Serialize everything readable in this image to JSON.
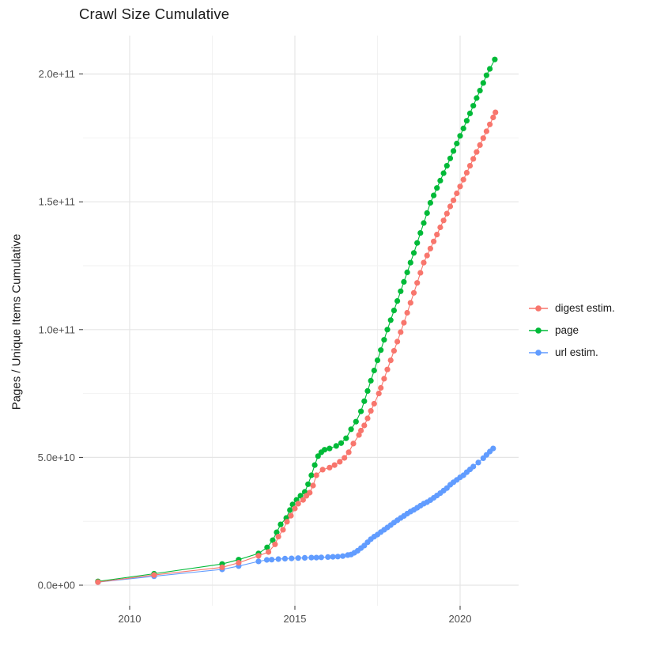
{
  "page": {
    "background": "#ffffff"
  },
  "chart_data": {
    "type": "line",
    "title": "Crawl Size Cumulative",
    "xlabel": "",
    "ylabel": "Pages / Unique Items Cumulative",
    "legend_position": "right",
    "grid": true,
    "grid_major_color": "#e5e5e5",
    "grid_minor_color": "#f2f2f2",
    "tick_mark_color": "#333333",
    "tick_label_color": "#4d4d4d",
    "value_unit": "items (point values stored in billions, i.e. 1e9)",
    "x_domain": [
      2008.6,
      2021.8
    ],
    "y_domain_billions": [
      -8,
      215
    ],
    "x_ticks": [
      {
        "label": "2010",
        "year": 2010
      },
      {
        "label": "2015",
        "year": 2015
      },
      {
        "label": "2020",
        "year": 2020
      }
    ],
    "x_minor_years": [
      2012.5,
      2017.5
    ],
    "y_ticks": [
      {
        "label": "0.0e+00",
        "billions": 0
      },
      {
        "label": "5.0e+10",
        "billions": 50
      },
      {
        "label": "1.0e+11",
        "billions": 100
      },
      {
        "label": "1.5e+11",
        "billions": 150
      },
      {
        "label": "2.0e+11",
        "billions": 200
      }
    ],
    "y_minor_billions": [
      25,
      75,
      125,
      175
    ],
    "series": [
      {
        "name": "digest estim.",
        "color": "#F8766D",
        "points_year_billions": [
          [
            2009.04,
            1.2
          ],
          [
            2010.74,
            4
          ],
          [
            2012.8,
            7
          ],
          [
            2013.3,
            8.8
          ],
          [
            2013.9,
            11.5
          ],
          [
            2014.2,
            13
          ],
          [
            2014.4,
            16
          ],
          [
            2014.5,
            19
          ],
          [
            2014.64,
            21.7
          ],
          [
            2014.76,
            24.8
          ],
          [
            2014.88,
            27.2
          ],
          [
            2015.0,
            30
          ],
          [
            2015.1,
            31.9
          ],
          [
            2015.25,
            33.4
          ],
          [
            2015.35,
            35
          ],
          [
            2015.45,
            36.2
          ],
          [
            2015.55,
            39
          ],
          [
            2015.65,
            43
          ],
          [
            2015.84,
            45.2
          ],
          [
            2016.05,
            46
          ],
          [
            2016.2,
            47
          ],
          [
            2016.36,
            48.3
          ],
          [
            2016.5,
            49.8
          ],
          [
            2016.63,
            52
          ],
          [
            2016.77,
            55.4
          ],
          [
            2016.94,
            58.8
          ],
          [
            2017.0,
            60.5
          ],
          [
            2017.1,
            62.5
          ],
          [
            2017.2,
            65.3
          ],
          [
            2017.3,
            68.2
          ],
          [
            2017.4,
            71
          ],
          [
            2017.54,
            75
          ],
          [
            2017.6,
            77.2
          ],
          [
            2017.7,
            80.8
          ],
          [
            2017.8,
            84.4
          ],
          [
            2017.9,
            88
          ],
          [
            2018.0,
            91.7
          ],
          [
            2018.1,
            95.3
          ],
          [
            2018.2,
            99
          ],
          [
            2018.3,
            102.7
          ],
          [
            2018.4,
            106.6
          ],
          [
            2018.5,
            110.5
          ],
          [
            2018.6,
            114.4
          ],
          [
            2018.7,
            118.3
          ],
          [
            2018.8,
            122.2
          ],
          [
            2018.9,
            126.2
          ],
          [
            2019.0,
            129
          ],
          [
            2019.1,
            131.7
          ],
          [
            2019.2,
            134.5
          ],
          [
            2019.3,
            137.2
          ],
          [
            2019.4,
            140
          ],
          [
            2019.5,
            142.7
          ],
          [
            2019.6,
            145.4
          ],
          [
            2019.7,
            148.2
          ],
          [
            2019.8,
            150.6
          ],
          [
            2019.9,
            153.3
          ],
          [
            2020.0,
            156
          ],
          [
            2020.1,
            158.7
          ],
          [
            2020.2,
            161.4
          ],
          [
            2020.3,
            164.1
          ],
          [
            2020.4,
            166.8
          ],
          [
            2020.5,
            169.5
          ],
          [
            2020.6,
            172.2
          ],
          [
            2020.7,
            174.9
          ],
          [
            2020.8,
            177.6
          ],
          [
            2020.9,
            180.3
          ],
          [
            2021.0,
            183
          ],
          [
            2021.07,
            185
          ]
        ]
      },
      {
        "name": "page",
        "color": "#00BA38",
        "points_year_billions": [
          [
            2009.04,
            1.5
          ],
          [
            2010.74,
            4.5
          ],
          [
            2012.8,
            8.3
          ],
          [
            2013.3,
            10
          ],
          [
            2013.9,
            12.4
          ],
          [
            2014.16,
            14.8
          ],
          [
            2014.33,
            17.6
          ],
          [
            2014.45,
            20.7
          ],
          [
            2014.57,
            23.8
          ],
          [
            2014.74,
            26.3
          ],
          [
            2014.85,
            29.4
          ],
          [
            2014.93,
            31.6
          ],
          [
            2015.05,
            33.4
          ],
          [
            2015.17,
            35
          ],
          [
            2015.3,
            36.5
          ],
          [
            2015.4,
            39.5
          ],
          [
            2015.5,
            43
          ],
          [
            2015.6,
            47
          ],
          [
            2015.7,
            50.5
          ],
          [
            2015.8,
            52
          ],
          [
            2015.9,
            53
          ],
          [
            2016.05,
            53.5
          ],
          [
            2016.25,
            54.5
          ],
          [
            2016.4,
            55.6
          ],
          [
            2016.55,
            57.5
          ],
          [
            2016.7,
            61
          ],
          [
            2016.85,
            64
          ],
          [
            2017.0,
            68
          ],
          [
            2017.1,
            72
          ],
          [
            2017.2,
            76
          ],
          [
            2017.3,
            80
          ],
          [
            2017.4,
            84
          ],
          [
            2017.5,
            88
          ],
          [
            2017.6,
            92
          ],
          [
            2017.7,
            96
          ],
          [
            2017.8,
            100
          ],
          [
            2017.9,
            103.7
          ],
          [
            2018.0,
            107.5
          ],
          [
            2018.1,
            111.2
          ],
          [
            2018.2,
            115
          ],
          [
            2018.3,
            118.7
          ],
          [
            2018.4,
            122.4
          ],
          [
            2018.5,
            126.2
          ],
          [
            2018.6,
            130
          ],
          [
            2018.7,
            133.9
          ],
          [
            2018.8,
            137.8
          ],
          [
            2018.9,
            141.7
          ],
          [
            2019.0,
            145.6
          ],
          [
            2019.1,
            149.6
          ],
          [
            2019.2,
            152.5
          ],
          [
            2019.3,
            155.4
          ],
          [
            2019.4,
            158.3
          ],
          [
            2019.5,
            161.2
          ],
          [
            2019.6,
            164.1
          ],
          [
            2019.7,
            167
          ],
          [
            2019.8,
            169.9
          ],
          [
            2019.9,
            172.8
          ],
          [
            2020.0,
            175.8
          ],
          [
            2020.1,
            178.7
          ],
          [
            2020.2,
            181.7
          ],
          [
            2020.3,
            184.6
          ],
          [
            2020.4,
            187.6
          ],
          [
            2020.5,
            190.6
          ],
          [
            2020.6,
            193.5
          ],
          [
            2020.7,
            196.5
          ],
          [
            2020.8,
            199.5
          ],
          [
            2020.9,
            202
          ],
          [
            2021.05,
            205.7
          ]
        ]
      },
      {
        "name": "url estim.",
        "color": "#619CFF",
        "points_year_billions": [
          [
            2009.04,
            1.2
          ],
          [
            2010.74,
            3.5
          ],
          [
            2012.8,
            6.2
          ],
          [
            2013.3,
            7.5
          ],
          [
            2013.9,
            9.3
          ],
          [
            2014.15,
            9.9
          ],
          [
            2014.3,
            10
          ],
          [
            2014.5,
            10.2
          ],
          [
            2014.7,
            10.4
          ],
          [
            2014.9,
            10.5
          ],
          [
            2015.1,
            10.6
          ],
          [
            2015.3,
            10.7
          ],
          [
            2015.5,
            10.8
          ],
          [
            2015.65,
            10.8
          ],
          [
            2015.8,
            10.9
          ],
          [
            2016.0,
            11
          ],
          [
            2016.15,
            11.1
          ],
          [
            2016.3,
            11.2
          ],
          [
            2016.45,
            11.4
          ],
          [
            2016.6,
            11.8
          ],
          [
            2016.7,
            12
          ],
          [
            2016.8,
            12.7
          ],
          [
            2016.9,
            13.5
          ],
          [
            2017.0,
            14.5
          ],
          [
            2017.1,
            15.5
          ],
          [
            2017.2,
            16.8
          ],
          [
            2017.3,
            18
          ],
          [
            2017.4,
            19
          ],
          [
            2017.5,
            19.8
          ],
          [
            2017.6,
            20.8
          ],
          [
            2017.7,
            21.7
          ],
          [
            2017.8,
            22.6
          ],
          [
            2017.9,
            23.5
          ],
          [
            2018.0,
            24.5
          ],
          [
            2018.1,
            25.4
          ],
          [
            2018.2,
            26.3
          ],
          [
            2018.3,
            27.1
          ],
          [
            2018.4,
            28
          ],
          [
            2018.5,
            28.8
          ],
          [
            2018.6,
            29.5
          ],
          [
            2018.7,
            30.3
          ],
          [
            2018.8,
            31.1
          ],
          [
            2018.9,
            31.9
          ],
          [
            2019.0,
            32.5
          ],
          [
            2019.1,
            33.3
          ],
          [
            2019.2,
            34.2
          ],
          [
            2019.3,
            35.1
          ],
          [
            2019.4,
            36
          ],
          [
            2019.5,
            37
          ],
          [
            2019.6,
            38
          ],
          [
            2019.7,
            39.3
          ],
          [
            2019.8,
            40.3
          ],
          [
            2019.9,
            41.2
          ],
          [
            2020.0,
            42.2
          ],
          [
            2020.1,
            43
          ],
          [
            2020.2,
            44.2
          ],
          [
            2020.3,
            45.3
          ],
          [
            2020.4,
            46.4
          ],
          [
            2020.55,
            48
          ],
          [
            2020.7,
            49.7
          ],
          [
            2020.8,
            51
          ],
          [
            2020.9,
            52.3
          ],
          [
            2021.0,
            53.5
          ]
        ]
      }
    ]
  }
}
